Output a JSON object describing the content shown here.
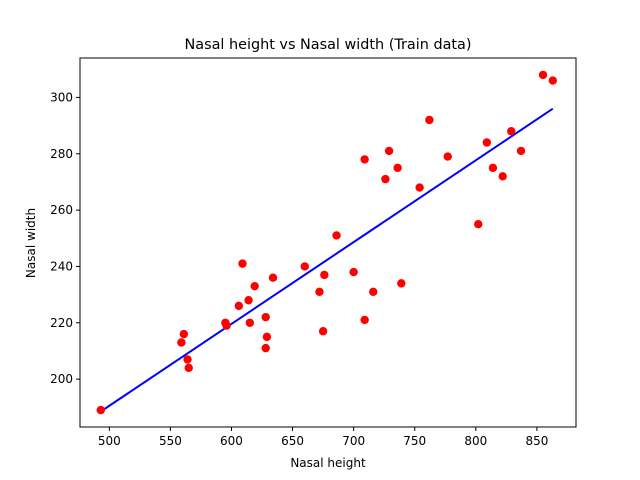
{
  "chart_data": {
    "type": "scatter",
    "title": "Nasal height vs Nasal width (Train data)",
    "xlabel": "Nasal height",
    "ylabel": "Nasal width",
    "xlim": [
      476,
      882
    ],
    "ylim": [
      183,
      314
    ],
    "xticks": [
      500,
      550,
      600,
      650,
      700,
      750,
      800,
      850
    ],
    "yticks": [
      200,
      220,
      240,
      260,
      280,
      300
    ],
    "grid": false,
    "series": [
      {
        "kind": "scatter",
        "color": "#ff0000",
        "points": [
          [
            493,
            189
          ],
          [
            559,
            213
          ],
          [
            561,
            216
          ],
          [
            564,
            207
          ],
          [
            565,
            204
          ],
          [
            595,
            220
          ],
          [
            596,
            219
          ],
          [
            606,
            226
          ],
          [
            609,
            241
          ],
          [
            614,
            228
          ],
          [
            615,
            220
          ],
          [
            619,
            233
          ],
          [
            628,
            222
          ],
          [
            628,
            211
          ],
          [
            629,
            215
          ],
          [
            634,
            236
          ],
          [
            660,
            240
          ],
          [
            672,
            231
          ],
          [
            675,
            217
          ],
          [
            676,
            237
          ],
          [
            686,
            251
          ],
          [
            700,
            238
          ],
          [
            709,
            221
          ],
          [
            709,
            278
          ],
          [
            716,
            231
          ],
          [
            726,
            271
          ],
          [
            729,
            281
          ],
          [
            736,
            275
          ],
          [
            739,
            234
          ],
          [
            754,
            268
          ],
          [
            762,
            292
          ],
          [
            777,
            279
          ],
          [
            802,
            255
          ],
          [
            809,
            284
          ],
          [
            814,
            275
          ],
          [
            822,
            272
          ],
          [
            829,
            288
          ],
          [
            837,
            281
          ],
          [
            855,
            308
          ],
          [
            863,
            306
          ]
        ]
      },
      {
        "kind": "line",
        "color": "#0000ff",
        "points": [
          [
            493,
            188.5
          ],
          [
            863,
            296
          ]
        ]
      }
    ]
  }
}
